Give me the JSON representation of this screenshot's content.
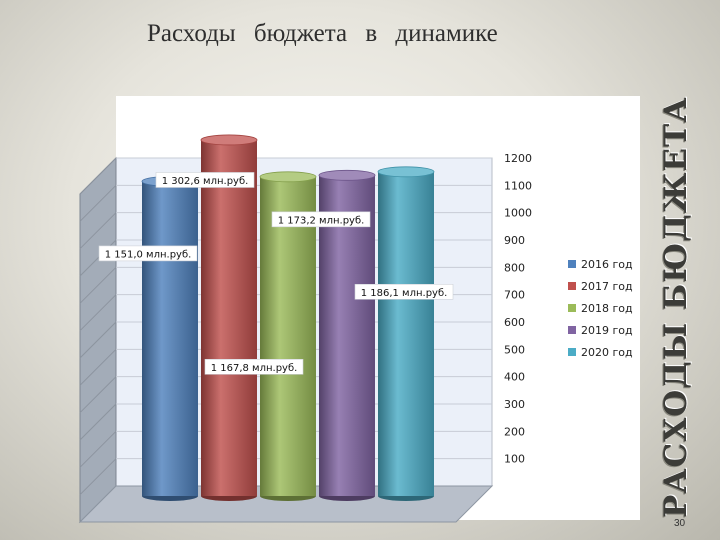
{
  "slide": {
    "title": "Расходы бюджета в динамике",
    "side_title": "РАСХОДЫ БЮДЖЕТА",
    "page_number": "30"
  },
  "chart_data": {
    "type": "bar",
    "style": "3d-cylinder",
    "title": "",
    "xlabel": "",
    "ylabel": "",
    "ylim": [
      0,
      1200
    ],
    "y_ticks": [
      100,
      200,
      300,
      400,
      500,
      600,
      700,
      800,
      900,
      1000,
      1100,
      1200
    ],
    "grid": true,
    "legend_position": "right",
    "series": [
      {
        "name": "2016 год",
        "value": 1151.0,
        "label": "1 151,0 млн.руб.",
        "color": "#4f81bd"
      },
      {
        "name": "2017 год",
        "value": 1302.6,
        "label": "1 302,6 млн.руб.",
        "color": "#c0504d"
      },
      {
        "name": "2018 год",
        "value": 1167.8,
        "label": "1 167,8 млн.руб.",
        "color": "#9bbb59"
      },
      {
        "name": "2019 год",
        "value": 1173.2,
        "label": "1 173,2 млн.руб.",
        "color": "#8064a2"
      },
      {
        "name": "2020 год",
        "value": 1186.1,
        "label": "1 186,1 млн.руб.",
        "color": "#4bacc6"
      }
    ]
  }
}
